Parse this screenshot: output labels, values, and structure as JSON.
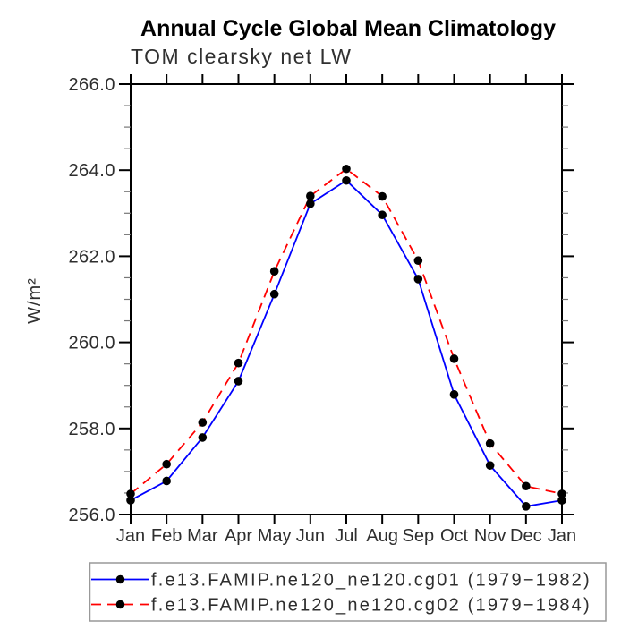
{
  "chart_data": {
    "type": "line",
    "title": "Annual Cycle Global Mean Climatology",
    "subtitle": "TOM clearsky net LW",
    "ylabel": "W/m²",
    "xlabel": "",
    "ylim": [
      256.0,
      266.0
    ],
    "ytick_major_step": 2.0,
    "ytick_minor_step": 0.5,
    "yticks": [
      {
        "value": 256.0,
        "label": "256.0"
      },
      {
        "value": 258.0,
        "label": "258.0"
      },
      {
        "value": 260.0,
        "label": "260.0"
      },
      {
        "value": 262.0,
        "label": "262.0"
      },
      {
        "value": 264.0,
        "label": "264.0"
      },
      {
        "value": 266.0,
        "label": "266.0"
      }
    ],
    "categories": [
      "Jan",
      "Feb",
      "Mar",
      "Apr",
      "May",
      "Jun",
      "Jul",
      "Aug",
      "Sep",
      "Oct",
      "Nov",
      "Dec",
      "Jan"
    ],
    "series": [
      {
        "name": "f.e13.FAMIP.ne120_ne120.cg01 (1979−1982)",
        "color": "#0000ff",
        "line_style": "solid",
        "marker": "filled-circle",
        "marker_color": "#000000",
        "values": [
          256.33,
          256.78,
          257.79,
          259.1,
          261.12,
          263.22,
          263.76,
          262.96,
          261.47,
          258.79,
          257.14,
          256.19,
          256.33
        ]
      },
      {
        "name": "f.e13.FAMIP.ne120_ne120.cg02 (1979−1984)",
        "color": "#ff0000",
        "line_style": "dashed",
        "marker": "filled-circle",
        "marker_color": "#000000",
        "values": [
          256.48,
          257.17,
          258.14,
          259.52,
          261.65,
          263.4,
          264.03,
          263.39,
          261.9,
          259.62,
          257.65,
          256.66,
          256.48
        ]
      }
    ],
    "legend_position": "bottom",
    "grid": false,
    "colors": {
      "axis": "#000000",
      "tick_label": "#2e2e2e",
      "legend_border": "#999999"
    }
  }
}
